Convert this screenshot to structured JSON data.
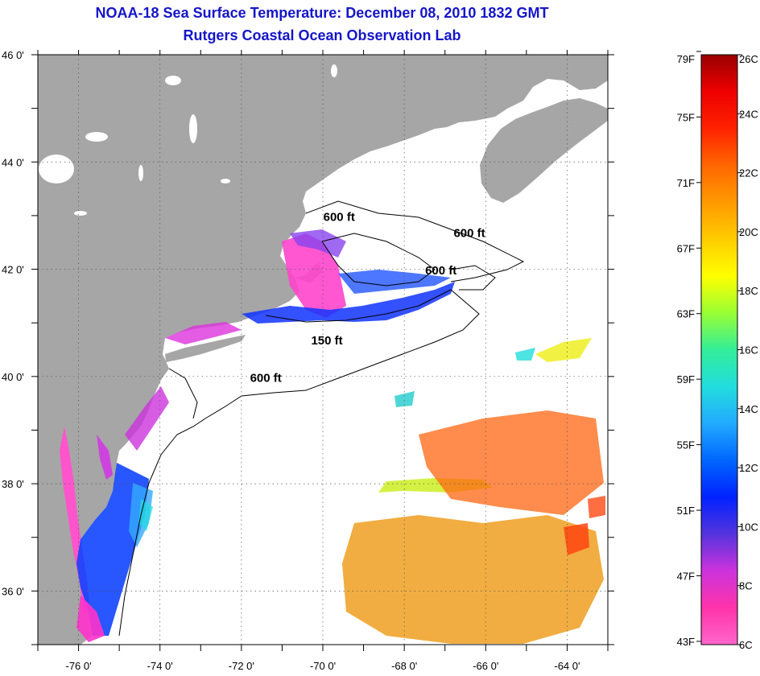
{
  "title": "NOAA-18 Sea Surface Temperature:  December 08, 2010 1832 GMT",
  "subtitle": "Rutgers Coastal Ocean Observation Lab",
  "map": {
    "lon_range": [
      -77,
      -63
    ],
    "lat_range": [
      35,
      46
    ],
    "lon_ticks": [
      {
        "value": -76,
        "label": "-76 0'"
      },
      {
        "value": -74,
        "label": "-74 0'"
      },
      {
        "value": -72,
        "label": "-72 0'"
      },
      {
        "value": -70,
        "label": "-70 0'"
      },
      {
        "value": -68,
        "label": "-68 0'"
      },
      {
        "value": -66,
        "label": "-66 0'"
      },
      {
        "value": -64,
        "label": "-64 0'"
      }
    ],
    "lat_ticks": [
      {
        "value": 46,
        "label": "46 0'"
      },
      {
        "value": 44,
        "label": "44 0'"
      },
      {
        "value": 42,
        "label": "42 0'"
      },
      {
        "value": 40,
        "label": "40 0'"
      },
      {
        "value": 38,
        "label": "38 0'"
      },
      {
        "value": 36,
        "label": "36 0'"
      }
    ],
    "grid": "dotted",
    "land_color": "#a6a6a6",
    "ocean_color": "#ffffff",
    "contour_labels": [
      {
        "text": "600 ft",
        "lon": -69.6,
        "lat": 42.9
      },
      {
        "text": "600 ft",
        "lon": -66.4,
        "lat": 42.6
      },
      {
        "text": "600 ft",
        "lon": -67.1,
        "lat": 41.9
      },
      {
        "text": "150 ft",
        "lon": -69.9,
        "lat": 40.6
      },
      {
        "text": "600 ft",
        "lon": -71.4,
        "lat": 39.9
      }
    ]
  },
  "colorbar": {
    "temp_range_c": [
      6,
      26
    ],
    "colors": [
      "#ff66cc",
      "#ff33aa",
      "#cc33dd",
      "#5533dd",
      "#0022ff",
      "#0066ff",
      "#22aaff",
      "#22dddd",
      "#33ee99",
      "#99ff33",
      "#ffff00",
      "#ffcc00",
      "#ff9900",
      "#ff6600",
      "#ff2200",
      "#ee0000",
      "#990000"
    ],
    "fahrenheit_labels": [
      "79F",
      "75F",
      "71F",
      "67F",
      "63F",
      "59F",
      "55F",
      "51F",
      "47F",
      "43F"
    ],
    "celsius_labels": [
      "26C",
      "24C",
      "22C",
      "20C",
      "18C",
      "16C",
      "14C",
      "12C",
      "10C",
      "8C",
      "6C"
    ]
  }
}
